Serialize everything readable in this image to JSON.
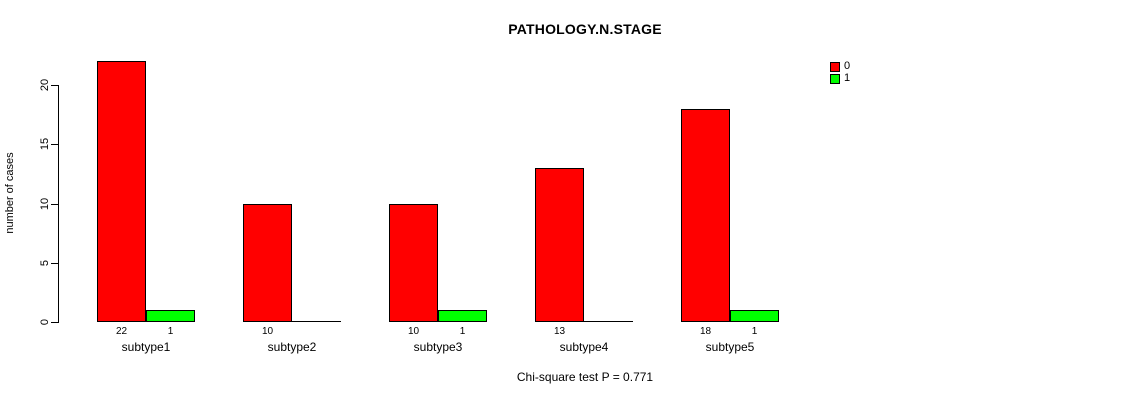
{
  "title": "PATHOLOGY.N.STAGE",
  "caption": "Chi-square test P = 0.771",
  "colors": {
    "series_0": "#FF0000",
    "series_1": "#00FF00",
    "axis": "#000000",
    "background": "#FFFFFF"
  },
  "chart_data": {
    "type": "bar",
    "grouped": true,
    "title": "PATHOLOGY.N.STAGE",
    "categories": [
      "subtype1",
      "subtype2",
      "subtype3",
      "subtype4",
      "subtype5"
    ],
    "series": [
      {
        "name": "0",
        "color": "#FF0000",
        "values": [
          22,
          10,
          10,
          13,
          18
        ]
      },
      {
        "name": "1",
        "color": "#00FF00",
        "values": [
          1,
          0,
          1,
          0,
          1
        ]
      }
    ],
    "value_labels_visible": [
      [
        22,
        1
      ],
      [
        10
      ],
      [
        10,
        1
      ],
      [
        13
      ],
      [
        18,
        1
      ]
    ],
    "xlabel": "",
    "ylabel": "number of cases",
    "yticks": [
      0,
      5,
      10,
      15,
      20
    ],
    "ylim": [
      0,
      22
    ],
    "grid": false,
    "legend_position": "top-right",
    "annotation": "Chi-square test P = 0.771"
  }
}
